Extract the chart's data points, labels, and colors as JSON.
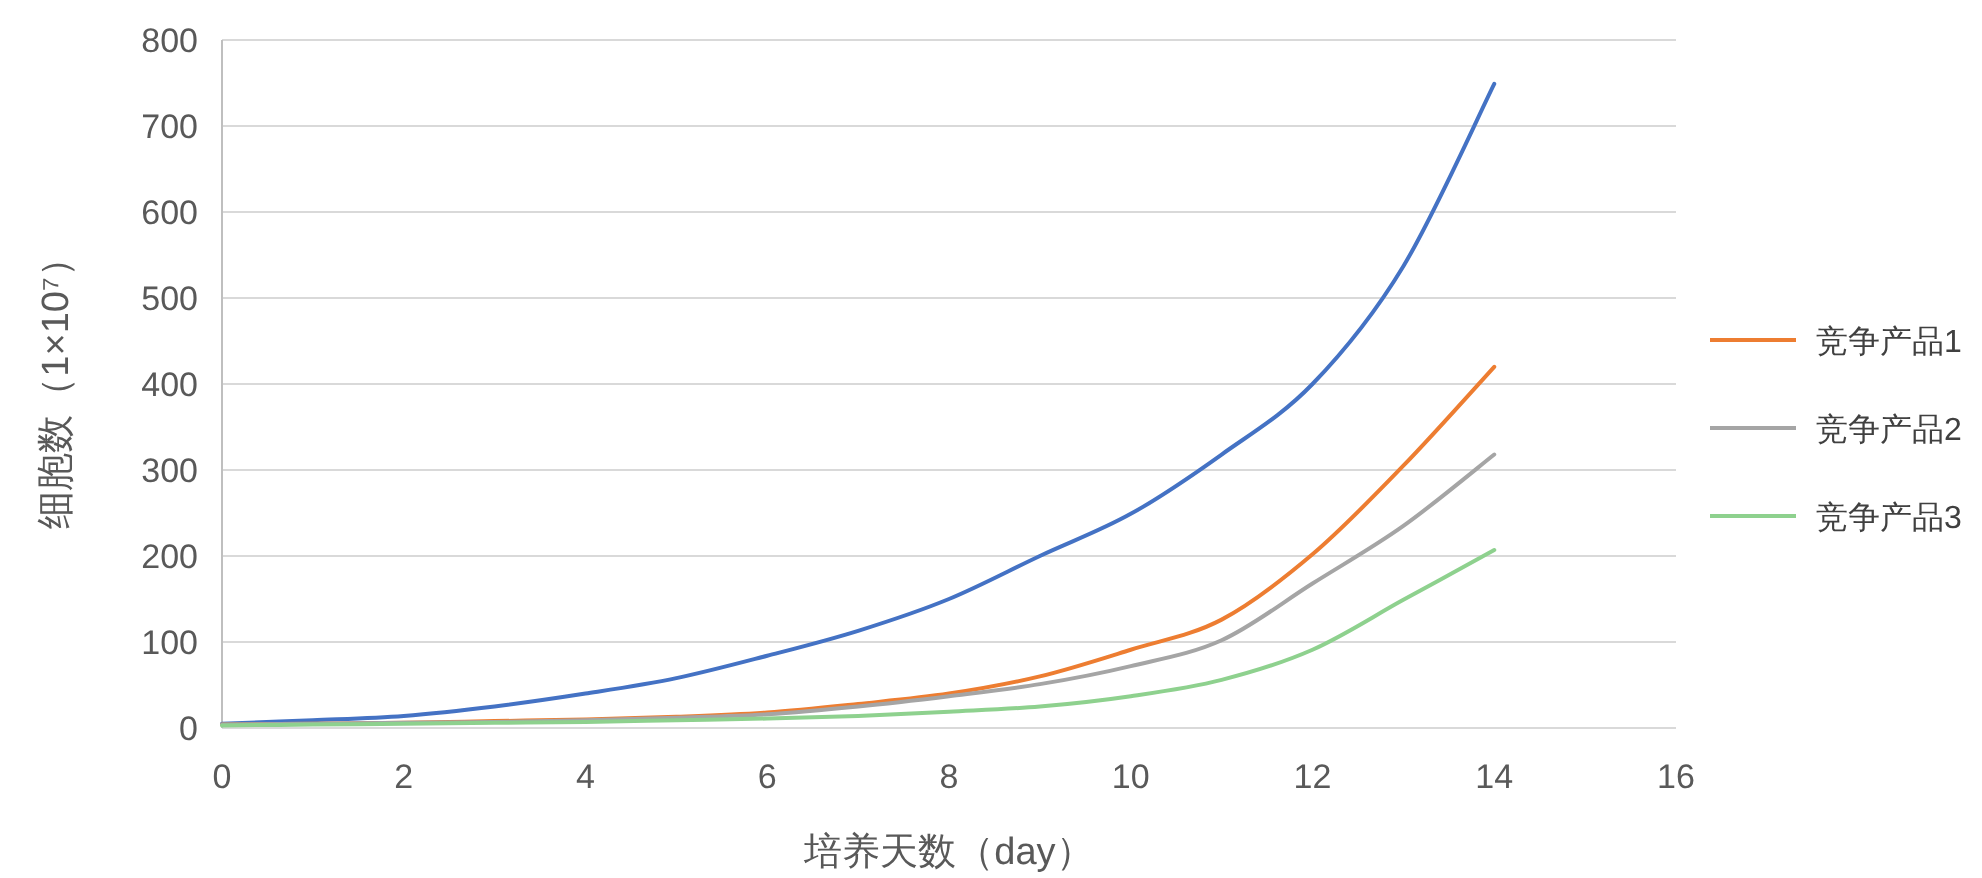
{
  "chart_data": {
    "type": "line",
    "xlabel": "培养天数（day）",
    "ylabel": "细胞数（1×10⁷）",
    "x": [
      0,
      1,
      2,
      3,
      4,
      5,
      6,
      7,
      8,
      9,
      10,
      11,
      12,
      13,
      14
    ],
    "series": [
      {
        "color": "#4472c4",
        "values": [
          5,
          9,
          14,
          25,
          40,
          58,
          84,
          113,
          150,
          200,
          249,
          318,
          400,
          537,
          749
        ]
      },
      {
        "name": "竞争产品1",
        "color": "#ed7d31",
        "values": [
          4,
          5,
          6,
          8,
          10,
          13,
          18,
          28,
          40,
          60,
          91,
          126,
          202,
          305,
          420
        ]
      },
      {
        "name": "竞争产品2",
        "color": "#a5a5a5",
        "values": [
          4,
          5,
          6,
          7,
          9,
          12,
          16,
          25,
          37,
          51,
          72,
          102,
          168,
          235,
          318
        ]
      },
      {
        "name": "竞争产品3",
        "color": "#8ed18e",
        "values": [
          3,
          4,
          5,
          6,
          7,
          9,
          11,
          14,
          19,
          25,
          37,
          56,
          91,
          149,
          207
        ]
      }
    ],
    "xlim": [
      0,
      16
    ],
    "xticks": [
      0,
      2,
      4,
      6,
      8,
      10,
      12,
      14,
      16
    ],
    "ylim": [
      0,
      800
    ],
    "yticks": [
      0,
      100,
      200,
      300,
      400,
      500,
      600,
      700,
      800
    ],
    "grid": "y",
    "legend": "right",
    "marker": "none",
    "line_style": "solid"
  }
}
